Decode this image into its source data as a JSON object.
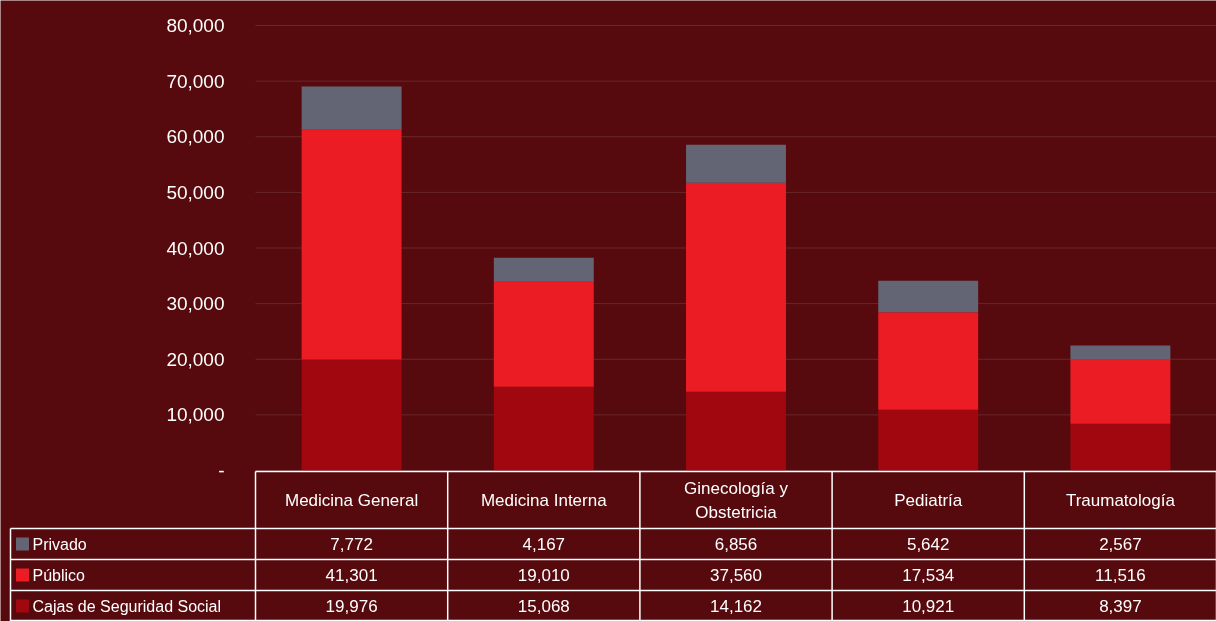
{
  "chart_data": {
    "type": "bar",
    "stacked": true,
    "categories": [
      "Medicina General",
      "Medicina Interna",
      "Ginecología y Obstetricia",
      "Pediatría",
      "Traumatología"
    ],
    "series": [
      {
        "name": "Cajas de Seguridad Social",
        "color": "#a1070f",
        "values": [
          19976,
          15068,
          14162,
          10921,
          8397
        ],
        "value_labels": [
          "19,976",
          "15,068",
          "14,162",
          "10,921",
          "8,397"
        ]
      },
      {
        "name": "Público",
        "color": "#ec1c24",
        "values": [
          41301,
          19010,
          37560,
          17534,
          11516
        ],
        "value_labels": [
          "41,301",
          "19,010",
          "37,560",
          "17,534",
          "11,516"
        ]
      },
      {
        "name": "Privado",
        "color": "#636474",
        "values": [
          7772,
          4167,
          6856,
          5642,
          2567
        ],
        "value_labels": [
          "7,772",
          "4,167",
          "6,856",
          "5,642",
          "2,567"
        ]
      }
    ],
    "ylim": [
      0,
      80000
    ],
    "yticks": [
      {
        "value": 0,
        "label": "-"
      },
      {
        "value": 10000,
        "label": "10,000"
      },
      {
        "value": 20000,
        "label": "20,000"
      },
      {
        "value": 30000,
        "label": "30,000"
      },
      {
        "value": 40000,
        "label": "40,000"
      },
      {
        "value": 50000,
        "label": "50,000"
      },
      {
        "value": 60000,
        "label": "60,000"
      },
      {
        "value": 70000,
        "label": "70,000"
      },
      {
        "value": 80000,
        "label": "80,000"
      }
    ],
    "grid": "y",
    "legend": "bottom left"
  }
}
